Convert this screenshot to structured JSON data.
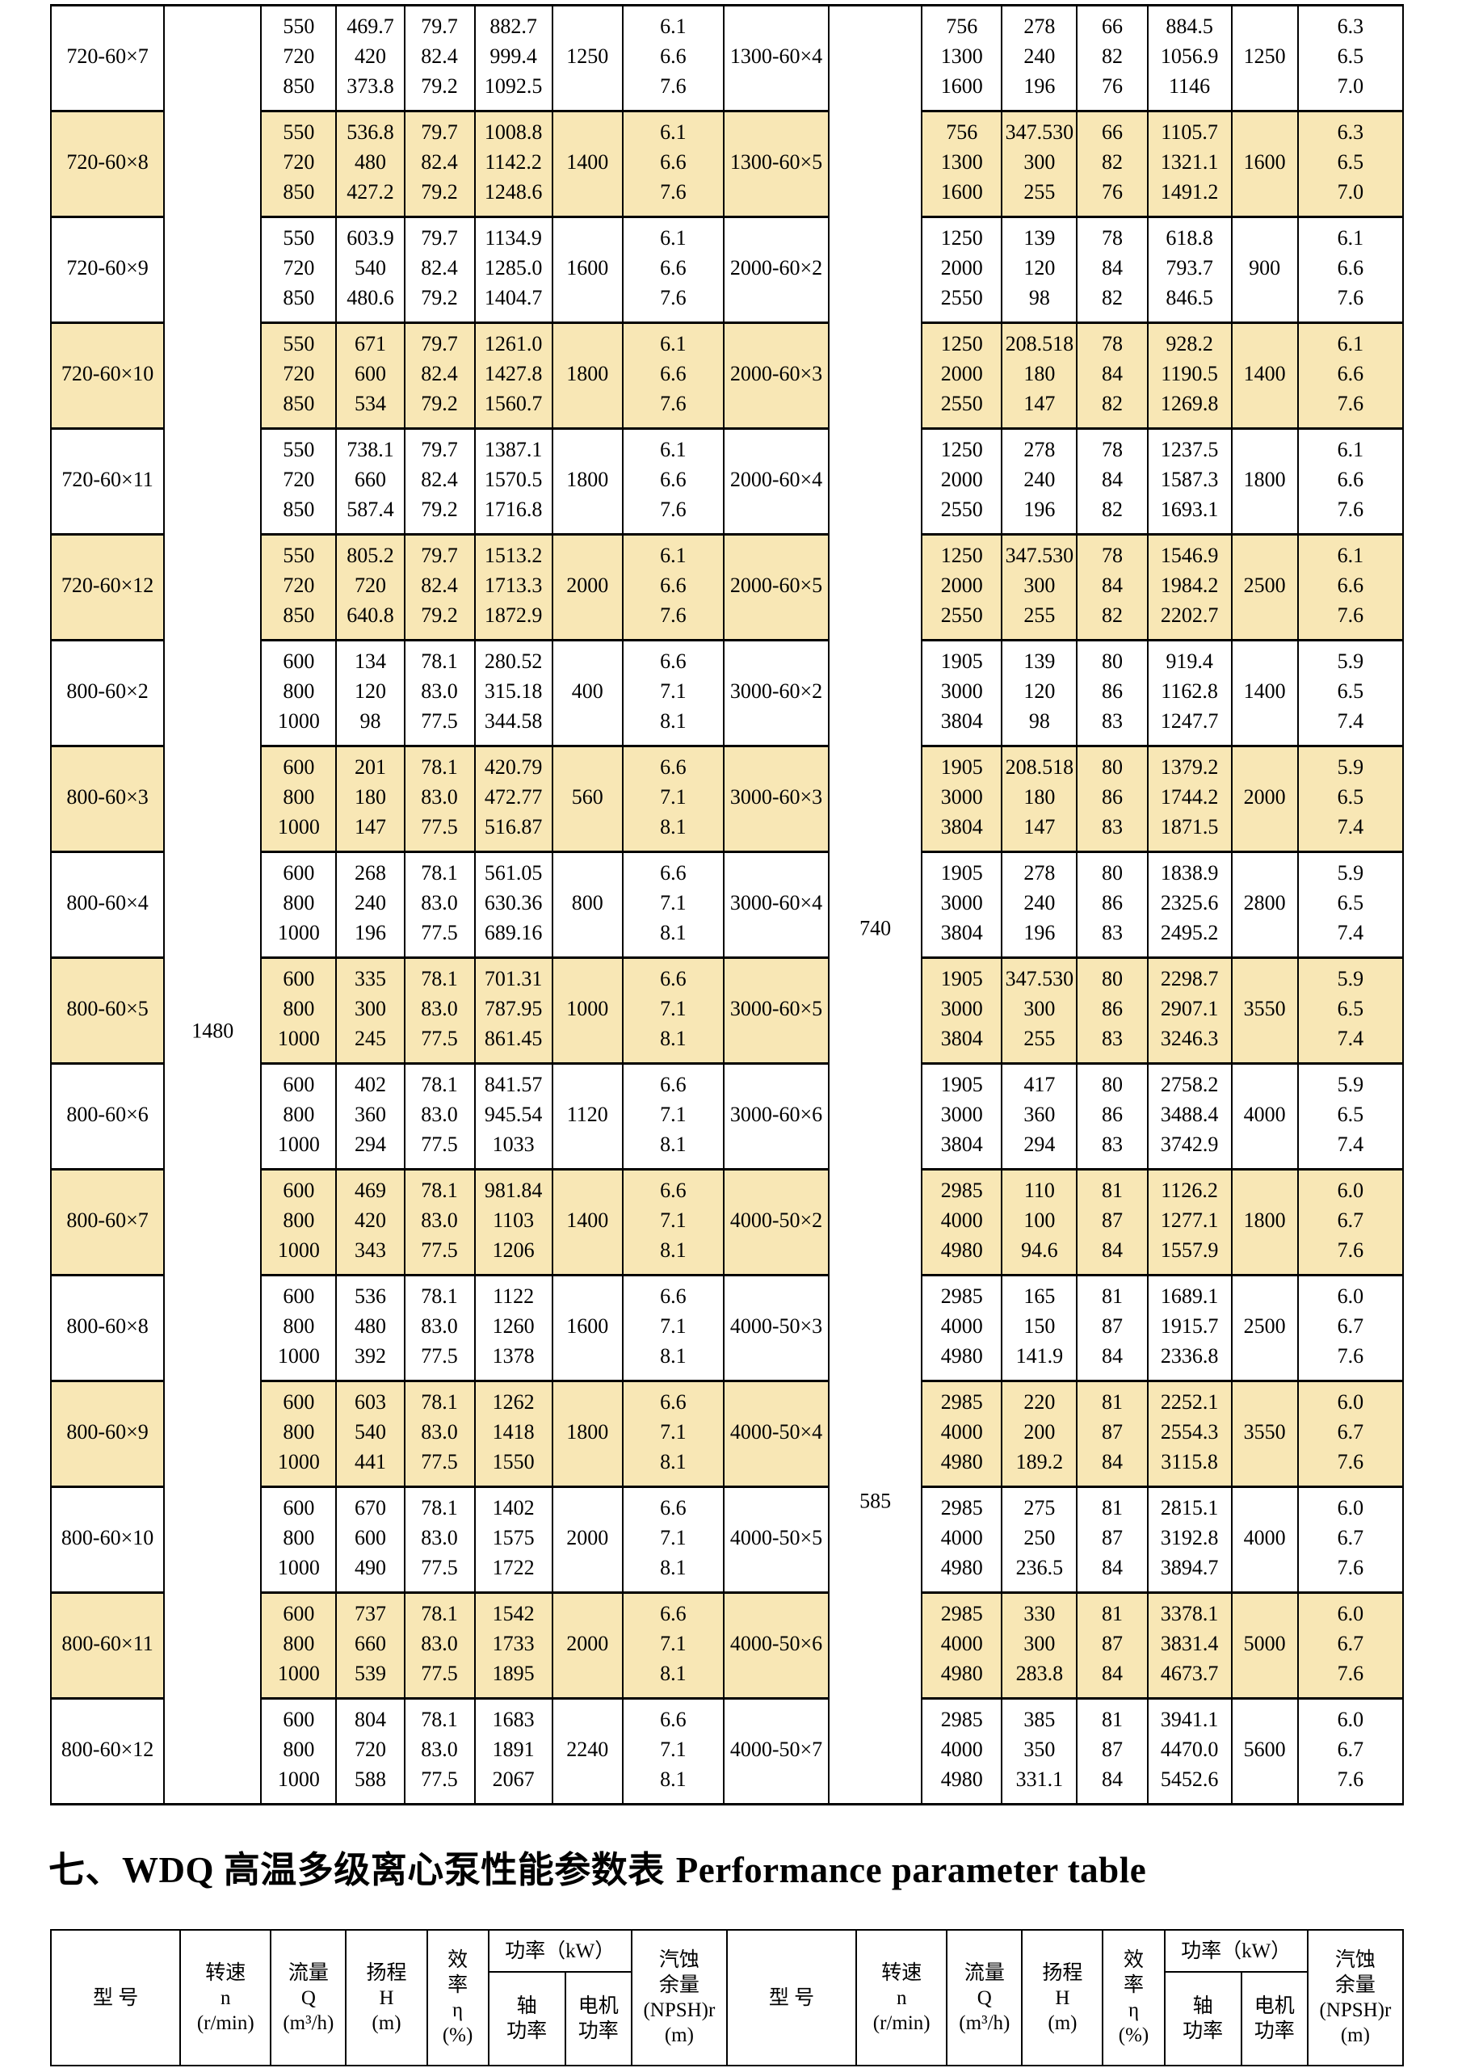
{
  "title": {
    "zh": "七、WDQ 高温多级离心泵性能参数表",
    "en": "Performance parameter table"
  },
  "colors": {
    "row_band": "#f8e7b5",
    "border": "#000000",
    "background": "#ffffff"
  },
  "header": {
    "model": "型  号",
    "speed": "转速\nn\n(r/min)",
    "flow": "流量\nQ\n(m³/h)",
    "head": "扬程\nH\n(m)",
    "eff": "效\n率\nη\n(%)",
    "power_kw": "功率（kW）",
    "shaft_power": "轴\n功率",
    "motor_power": "电机\n功率",
    "npsh": "汽蚀\n余量\n(NPSH)r\n(m)"
  },
  "main_table": {
    "speed_left": "1480",
    "speed_right_upper": "740",
    "speed_right_lower": "585",
    "rows": [
      {
        "band": false,
        "left": {
          "model": "720-60×7",
          "flow": [
            "550",
            "720",
            "850"
          ],
          "head": [
            "469.7",
            "420",
            "373.8"
          ],
          "eff": [
            "79.7",
            "82.4",
            "79.2"
          ],
          "shaft": [
            "882.7",
            "999.4",
            "1092.5"
          ],
          "motor": "1250",
          "npsh": [
            "6.1",
            "6.6",
            "7.6"
          ]
        },
        "right": {
          "model": "1300-60×4",
          "flow": [
            "756",
            "1300",
            "1600"
          ],
          "head": [
            "278",
            "240",
            "196"
          ],
          "eff": [
            "66",
            "82",
            "76"
          ],
          "shaft": [
            "884.5",
            "1056.9",
            "1146"
          ],
          "motor": "1250",
          "npsh": [
            "6.3",
            "6.5",
            "7.0"
          ]
        }
      },
      {
        "band": true,
        "left": {
          "model": "720-60×8",
          "flow": [
            "550",
            "720",
            "850"
          ],
          "head": [
            "536.8",
            "480",
            "427.2"
          ],
          "eff": [
            "79.7",
            "82.4",
            "79.2"
          ],
          "shaft": [
            "1008.8",
            "1142.2",
            "1248.6"
          ],
          "motor": "1400",
          "npsh": [
            "6.1",
            "6.6",
            "7.6"
          ]
        },
        "right": {
          "model": "1300-60×5",
          "flow": [
            "756",
            "1300",
            "1600"
          ],
          "head": [
            "347.530",
            "300",
            "255"
          ],
          "eff": [
            "66",
            "82",
            "76"
          ],
          "shaft": [
            "1105.7",
            "1321.1",
            "1491.2"
          ],
          "motor": "1600",
          "npsh": [
            "6.3",
            "6.5",
            "7.0"
          ]
        }
      },
      {
        "band": false,
        "left": {
          "model": "720-60×9",
          "flow": [
            "550",
            "720",
            "850"
          ],
          "head": [
            "603.9",
            "540",
            "480.6"
          ],
          "eff": [
            "79.7",
            "82.4",
            "79.2"
          ],
          "shaft": [
            "1134.9",
            "1285.0",
            "1404.7"
          ],
          "motor": "1600",
          "npsh": [
            "6.1",
            "6.6",
            "7.6"
          ]
        },
        "right": {
          "model": "2000-60×2",
          "flow": [
            "1250",
            "2000",
            "2550"
          ],
          "head": [
            "139",
            "120",
            "98"
          ],
          "eff": [
            "78",
            "84",
            "82"
          ],
          "shaft": [
            "618.8",
            "793.7",
            "846.5"
          ],
          "motor": "900",
          "npsh": [
            "6.1",
            "6.6",
            "7.6"
          ]
        }
      },
      {
        "band": true,
        "left": {
          "model": "720-60×10",
          "flow": [
            "550",
            "720",
            "850"
          ],
          "head": [
            "671",
            "600",
            "534"
          ],
          "eff": [
            "79.7",
            "82.4",
            "79.2"
          ],
          "shaft": [
            "1261.0",
            "1427.8",
            "1560.7"
          ],
          "motor": "1800",
          "npsh": [
            "6.1",
            "6.6",
            "7.6"
          ]
        },
        "right": {
          "model": "2000-60×3",
          "flow": [
            "1250",
            "2000",
            "2550"
          ],
          "head": [
            "208.518",
            "180",
            "147"
          ],
          "eff": [
            "78",
            "84",
            "82"
          ],
          "shaft": [
            "928.2",
            "1190.5",
            "1269.8"
          ],
          "motor": "1400",
          "npsh": [
            "6.1",
            "6.6",
            "7.6"
          ]
        }
      },
      {
        "band": false,
        "left": {
          "model": "720-60×11",
          "flow": [
            "550",
            "720",
            "850"
          ],
          "head": [
            "738.1",
            "660",
            "587.4"
          ],
          "eff": [
            "79.7",
            "82.4",
            "79.2"
          ],
          "shaft": [
            "1387.1",
            "1570.5",
            "1716.8"
          ],
          "motor": "1800",
          "npsh": [
            "6.1",
            "6.6",
            "7.6"
          ]
        },
        "right": {
          "model": "2000-60×4",
          "flow": [
            "1250",
            "2000",
            "2550"
          ],
          "head": [
            "278",
            "240",
            "196"
          ],
          "eff": [
            "78",
            "84",
            "82"
          ],
          "shaft": [
            "1237.5",
            "1587.3",
            "1693.1"
          ],
          "motor": "1800",
          "npsh": [
            "6.1",
            "6.6",
            "7.6"
          ]
        }
      },
      {
        "band": true,
        "left": {
          "model": "720-60×12",
          "flow": [
            "550",
            "720",
            "850"
          ],
          "head": [
            "805.2",
            "720",
            "640.8"
          ],
          "eff": [
            "79.7",
            "82.4",
            "79.2"
          ],
          "shaft": [
            "1513.2",
            "1713.3",
            "1872.9"
          ],
          "motor": "2000",
          "npsh": [
            "6.1",
            "6.6",
            "7.6"
          ]
        },
        "right": {
          "model": "2000-60×5",
          "flow": [
            "1250",
            "2000",
            "2550"
          ],
          "head": [
            "347.530",
            "300",
            "255"
          ],
          "eff": [
            "78",
            "84",
            "82"
          ],
          "shaft": [
            "1546.9",
            "1984.2",
            "2202.7"
          ],
          "motor": "2500",
          "npsh": [
            "6.1",
            "6.6",
            "7.6"
          ]
        }
      },
      {
        "band": false,
        "left": {
          "model": "800-60×2",
          "flow": [
            "600",
            "800",
            "1000"
          ],
          "head": [
            "134",
            "120",
            "98"
          ],
          "eff": [
            "78.1",
            "83.0",
            "77.5"
          ],
          "shaft": [
            "280.52",
            "315.18",
            "344.58"
          ],
          "motor": "400",
          "npsh": [
            "6.6",
            "7.1",
            "8.1"
          ]
        },
        "right": {
          "model": "3000-60×2",
          "flow": [
            "1905",
            "3000",
            "3804"
          ],
          "head": [
            "139",
            "120",
            "98"
          ],
          "eff": [
            "80",
            "86",
            "83"
          ],
          "shaft": [
            "919.4",
            "1162.8",
            "1247.7"
          ],
          "motor": "1400",
          "npsh": [
            "5.9",
            "6.5",
            "7.4"
          ]
        }
      },
      {
        "band": true,
        "left": {
          "model": "800-60×3",
          "flow": [
            "600",
            "800",
            "1000"
          ],
          "head": [
            "201",
            "180",
            "147"
          ],
          "eff": [
            "78.1",
            "83.0",
            "77.5"
          ],
          "shaft": [
            "420.79",
            "472.77",
            "516.87"
          ],
          "motor": "560",
          "npsh": [
            "6.6",
            "7.1",
            "8.1"
          ]
        },
        "right": {
          "model": "3000-60×3",
          "flow": [
            "1905",
            "3000",
            "3804"
          ],
          "head": [
            "208.518",
            "180",
            "147"
          ],
          "eff": [
            "80",
            "86",
            "83"
          ],
          "shaft": [
            "1379.2",
            "1744.2",
            "1871.5"
          ],
          "motor": "2000",
          "npsh": [
            "5.9",
            "6.5",
            "7.4"
          ]
        }
      },
      {
        "band": false,
        "left": {
          "model": "800-60×4",
          "flow": [
            "600",
            "800",
            "1000"
          ],
          "head": [
            "268",
            "240",
            "196"
          ],
          "eff": [
            "78.1",
            "83.0",
            "77.5"
          ],
          "shaft": [
            "561.05",
            "630.36",
            "689.16"
          ],
          "motor": "800",
          "npsh": [
            "6.6",
            "7.1",
            "8.1"
          ]
        },
        "right": {
          "model": "3000-60×4",
          "flow": [
            "1905",
            "3000",
            "3804"
          ],
          "head": [
            "278",
            "240",
            "196"
          ],
          "eff": [
            "80",
            "86",
            "83"
          ],
          "shaft": [
            "1838.9",
            "2325.6",
            "2495.2"
          ],
          "motor": "2800",
          "npsh": [
            "5.9",
            "6.5",
            "7.4"
          ]
        }
      },
      {
        "band": true,
        "left": {
          "model": "800-60×5",
          "flow": [
            "600",
            "800",
            "1000"
          ],
          "head": [
            "335",
            "300",
            "245"
          ],
          "eff": [
            "78.1",
            "83.0",
            "77.5"
          ],
          "shaft": [
            "701.31",
            "787.95",
            "861.45"
          ],
          "motor": "1000",
          "npsh": [
            "6.6",
            "7.1",
            "8.1"
          ]
        },
        "right": {
          "model": "3000-60×5",
          "flow": [
            "1905",
            "3000",
            "3804"
          ],
          "head": [
            "347.530",
            "300",
            "255"
          ],
          "eff": [
            "80",
            "86",
            "83"
          ],
          "shaft": [
            "2298.7",
            "2907.1",
            "3246.3"
          ],
          "motor": "3550",
          "npsh": [
            "5.9",
            "6.5",
            "7.4"
          ]
        }
      },
      {
        "band": false,
        "left": {
          "model": "800-60×6",
          "flow": [
            "600",
            "800",
            "1000"
          ],
          "head": [
            "402",
            "360",
            "294"
          ],
          "eff": [
            "78.1",
            "83.0",
            "77.5"
          ],
          "shaft": [
            "841.57",
            "945.54",
            "1033"
          ],
          "motor": "1120",
          "npsh": [
            "6.6",
            "7.1",
            "8.1"
          ]
        },
        "right": {
          "model": "3000-60×6",
          "flow": [
            "1905",
            "3000",
            "3804"
          ],
          "head": [
            "417",
            "360",
            "294"
          ],
          "eff": [
            "80",
            "86",
            "83"
          ],
          "shaft": [
            "2758.2",
            "3488.4",
            "3742.9"
          ],
          "motor": "4000",
          "npsh": [
            "5.9",
            "6.5",
            "7.4"
          ]
        }
      },
      {
        "band": true,
        "left": {
          "model": "800-60×7",
          "flow": [
            "600",
            "800",
            "1000"
          ],
          "head": [
            "469",
            "420",
            "343"
          ],
          "eff": [
            "78.1",
            "83.0",
            "77.5"
          ],
          "shaft": [
            "981.84",
            "1103",
            "1206"
          ],
          "motor": "1400",
          "npsh": [
            "6.6",
            "7.1",
            "8.1"
          ]
        },
        "right": {
          "model": "4000-50×2",
          "flow": [
            "2985",
            "4000",
            "4980"
          ],
          "head": [
            "110",
            "100",
            "94.6"
          ],
          "eff": [
            "81",
            "87",
            "84"
          ],
          "shaft": [
            "1126.2",
            "1277.1",
            "1557.9"
          ],
          "motor": "1800",
          "npsh": [
            "6.0",
            "6.7",
            "7.6"
          ]
        }
      },
      {
        "band": false,
        "left": {
          "model": "800-60×8",
          "flow": [
            "600",
            "800",
            "1000"
          ],
          "head": [
            "536",
            "480",
            "392"
          ],
          "eff": [
            "78.1",
            "83.0",
            "77.5"
          ],
          "shaft": [
            "1122",
            "1260",
            "1378"
          ],
          "motor": "1600",
          "npsh": [
            "6.6",
            "7.1",
            "8.1"
          ]
        },
        "right": {
          "model": "4000-50×3",
          "flow": [
            "2985",
            "4000",
            "4980"
          ],
          "head": [
            "165",
            "150",
            "141.9"
          ],
          "eff": [
            "81",
            "87",
            "84"
          ],
          "shaft": [
            "1689.1",
            "1915.7",
            "2336.8"
          ],
          "motor": "2500",
          "npsh": [
            "6.0",
            "6.7",
            "7.6"
          ]
        }
      },
      {
        "band": true,
        "left": {
          "model": "800-60×9",
          "flow": [
            "600",
            "800",
            "1000"
          ],
          "head": [
            "603",
            "540",
            "441"
          ],
          "eff": [
            "78.1",
            "83.0",
            "77.5"
          ],
          "shaft": [
            "1262",
            "1418",
            "1550"
          ],
          "motor": "1800",
          "npsh": [
            "6.6",
            "7.1",
            "8.1"
          ]
        },
        "right": {
          "model": "4000-50×4",
          "flow": [
            "2985",
            "4000",
            "4980"
          ],
          "head": [
            "220",
            "200",
            "189.2"
          ],
          "eff": [
            "81",
            "87",
            "84"
          ],
          "shaft": [
            "2252.1",
            "2554.3",
            "3115.8"
          ],
          "motor": "3550",
          "npsh": [
            "6.0",
            "6.7",
            "7.6"
          ]
        }
      },
      {
        "band": false,
        "left": {
          "model": "800-60×10",
          "flow": [
            "600",
            "800",
            "1000"
          ],
          "head": [
            "670",
            "600",
            "490"
          ],
          "eff": [
            "78.1",
            "83.0",
            "77.5"
          ],
          "shaft": [
            "1402",
            "1575",
            "1722"
          ],
          "motor": "2000",
          "npsh": [
            "6.6",
            "7.1",
            "8.1"
          ]
        },
        "right": {
          "model": "4000-50×5",
          "flow": [
            "2985",
            "4000",
            "4980"
          ],
          "head": [
            "275",
            "250",
            "236.5"
          ],
          "eff": [
            "81",
            "87",
            "84"
          ],
          "shaft": [
            "2815.1",
            "3192.8",
            "3894.7"
          ],
          "motor": "4000",
          "npsh": [
            "6.0",
            "6.7",
            "7.6"
          ]
        }
      },
      {
        "band": true,
        "left": {
          "model": "800-60×11",
          "flow": [
            "600",
            "800",
            "1000"
          ],
          "head": [
            "737",
            "660",
            "539"
          ],
          "eff": [
            "78.1",
            "83.0",
            "77.5"
          ],
          "shaft": [
            "1542",
            "1733",
            "1895"
          ],
          "motor": "2000",
          "npsh": [
            "6.6",
            "7.1",
            "8.1"
          ]
        },
        "right": {
          "model": "4000-50×6",
          "flow": [
            "2985",
            "4000",
            "4980"
          ],
          "head": [
            "330",
            "300",
            "283.8"
          ],
          "eff": [
            "81",
            "87",
            "84"
          ],
          "shaft": [
            "3378.1",
            "3831.4",
            "4673.7"
          ],
          "motor": "5000",
          "npsh": [
            "6.0",
            "6.7",
            "7.6"
          ]
        }
      },
      {
        "band": false,
        "left": {
          "model": "800-60×12",
          "flow": [
            "600",
            "800",
            "1000"
          ],
          "head": [
            "804",
            "720",
            "588"
          ],
          "eff": [
            "78.1",
            "83.0",
            "77.5"
          ],
          "shaft": [
            "1683",
            "1891",
            "2067"
          ],
          "motor": "2240",
          "npsh": [
            "6.6",
            "7.1",
            "8.1"
          ]
        },
        "right": {
          "model": "4000-50×7",
          "flow": [
            "2985",
            "4000",
            "4980"
          ],
          "head": [
            "385",
            "350",
            "331.1"
          ],
          "eff": [
            "81",
            "87",
            "84"
          ],
          "shaft": [
            "3941.1",
            "4470.0",
            "5452.6"
          ],
          "motor": "5600",
          "npsh": [
            "6.0",
            "6.7",
            "7.6"
          ]
        }
      }
    ]
  }
}
